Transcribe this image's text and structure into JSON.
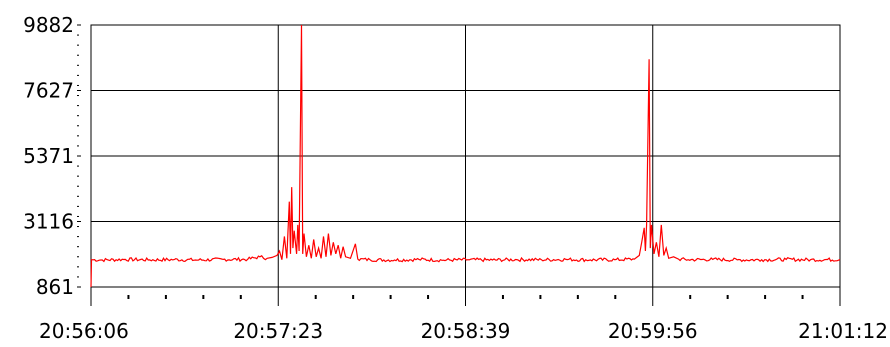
{
  "chart_data": {
    "type": "line",
    "title": "",
    "xlabel": "",
    "ylabel": "",
    "x_tick_labels": [
      "20:56:06",
      "20:57:23",
      "20:58:39",
      "20:59:56",
      "21:01:12"
    ],
    "y_tick_labels": [
      "9882",
      "7627",
      "5371",
      "3116",
      "861"
    ],
    "ylim": [
      861,
      9882
    ],
    "xlim": [
      "20:56:06",
      "21:01:12"
    ],
    "grid": true,
    "legend": "none",
    "series": [
      {
        "color": "#ff0000",
        "baseline": 1800,
        "points": [
          [
            "20:56:06",
            861
          ],
          [
            "20:56:06.2",
            1800
          ],
          [
            "20:56:10",
            1790
          ],
          [
            "20:56:20",
            1810
          ],
          [
            "20:56:30",
            1795
          ],
          [
            "20:56:40",
            1805
          ],
          [
            "20:56:50",
            1790
          ],
          [
            "20:57:00",
            1810
          ],
          [
            "20:57:10",
            1815
          ],
          [
            "20:57:15",
            1900
          ],
          [
            "20:57:18",
            1850
          ],
          [
            "20:57:20",
            1880
          ],
          [
            "20:57:22",
            1950
          ],
          [
            "20:57:23",
            2100
          ],
          [
            "20:57:24",
            1800
          ],
          [
            "20:57:25",
            2600
          ],
          [
            "20:57:26",
            1850
          ],
          [
            "20:57:27",
            3800
          ],
          [
            "20:57:27.5",
            2000
          ],
          [
            "20:57:28",
            4300
          ],
          [
            "20:57:28.5",
            2200
          ],
          [
            "20:57:29",
            2800
          ],
          [
            "20:57:30",
            2000
          ],
          [
            "20:57:30.5",
            3000
          ],
          [
            "20:57:31",
            2100
          ],
          [
            "20:57:32",
            9882
          ],
          [
            "20:57:32.5",
            2000
          ],
          [
            "20:57:33",
            2700
          ],
          [
            "20:57:34",
            1900
          ],
          [
            "20:57:35",
            2300
          ],
          [
            "20:57:36",
            1850
          ],
          [
            "20:57:37",
            2500
          ],
          [
            "20:57:38",
            1900
          ],
          [
            "20:57:39",
            2200
          ],
          [
            "20:57:40",
            1850
          ],
          [
            "20:57:41",
            2600
          ],
          [
            "20:57:42",
            1900
          ],
          [
            "20:57:43",
            2700
          ],
          [
            "20:57:44",
            1950
          ],
          [
            "20:57:45",
            2400
          ],
          [
            "20:57:46",
            2000
          ],
          [
            "20:57:47",
            2300
          ],
          [
            "20:57:48",
            1850
          ],
          [
            "20:57:49",
            2250
          ],
          [
            "20:57:50",
            1900
          ],
          [
            "20:57:52",
            1850
          ],
          [
            "20:57:54",
            2350
          ],
          [
            "20:57:55",
            1820
          ],
          [
            "20:58:00",
            1800
          ],
          [
            "20:58:10",
            1790
          ],
          [
            "20:58:20",
            1810
          ],
          [
            "20:58:30",
            1785
          ],
          [
            "20:58:40",
            1800
          ],
          [
            "20:58:50",
            1790
          ],
          [
            "20:59:00",
            1805
          ],
          [
            "20:59:10",
            1800
          ],
          [
            "20:59:20",
            1810
          ],
          [
            "20:59:30",
            1795
          ],
          [
            "20:59:40",
            1800
          ],
          [
            "20:59:48",
            1820
          ],
          [
            "20:59:50",
            1950
          ],
          [
            "20:59:51",
            2400
          ],
          [
            "20:59:52",
            2900
          ],
          [
            "20:59:52.5",
            2100
          ],
          [
            "20:59:53",
            3000
          ],
          [
            "20:59:54",
            8700
          ],
          [
            "20:59:54.5",
            2200
          ],
          [
            "20:59:55",
            3000
          ],
          [
            "20:59:56",
            2000
          ],
          [
            "20:59:57",
            2400
          ],
          [
            "20:59:58",
            1900
          ],
          [
            "20:59:59",
            3000
          ],
          [
            "21:00:00",
            1950
          ],
          [
            "21:00:01",
            2200
          ],
          [
            "21:00:02",
            1850
          ],
          [
            "21:00:04",
            1900
          ],
          [
            "21:00:06",
            1820
          ],
          [
            "21:00:10",
            1800
          ],
          [
            "21:00:20",
            1810
          ],
          [
            "21:00:30",
            1795
          ],
          [
            "21:00:40",
            1800
          ],
          [
            "21:00:50",
            1810
          ],
          [
            "21:01:00",
            1800
          ],
          [
            "21:01:12",
            1805
          ]
        ]
      }
    ]
  }
}
